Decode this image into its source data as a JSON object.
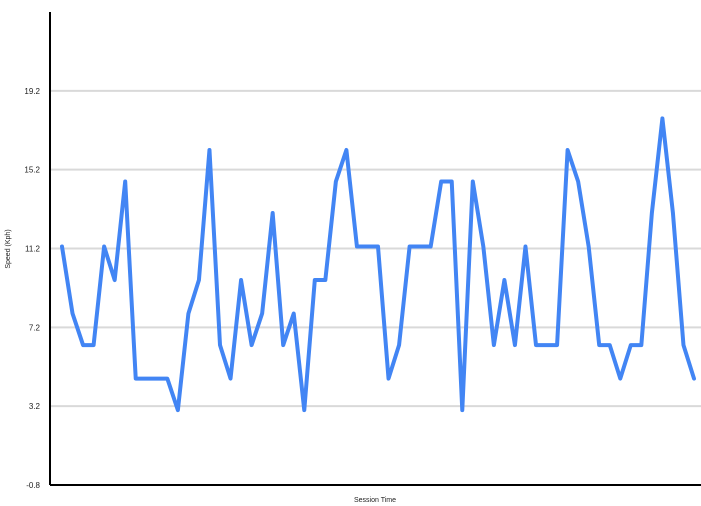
{
  "chart_data": {
    "type": "line",
    "title": "",
    "xlabel": "Session Time",
    "ylabel": "Speed (Kph)",
    "ylim": [
      -0.8,
      23.2
    ],
    "y_ticks": [
      "-0.8",
      "3.2",
      "7.2",
      "11.2",
      "15.2",
      "19.2"
    ],
    "grid": "horizontal",
    "legend": "none",
    "x_tick_labels": "none",
    "line_color": "#4285f4",
    "grid_color": "#d9d9d9",
    "axis_color": "#000000",
    "series": [
      {
        "values": [
          11.3,
          7.9,
          6.3,
          6.3,
          11.3,
          9.6,
          14.6,
          4.6,
          4.6,
          4.6,
          4.6,
          3.0,
          7.9,
          9.6,
          16.2,
          6.3,
          4.6,
          9.6,
          6.3,
          7.9,
          13.0,
          6.3,
          7.9,
          3.0,
          9.6,
          9.6,
          14.6,
          16.2,
          11.3,
          11.3,
          11.3,
          4.6,
          6.3,
          11.3,
          11.3,
          11.3,
          14.6,
          14.6,
          3.0,
          14.6,
          11.3,
          6.3,
          9.6,
          6.3,
          11.3,
          6.3,
          6.3,
          6.3,
          16.2,
          14.6,
          11.3,
          6.3,
          6.3,
          4.6,
          6.3,
          6.3,
          13.0,
          17.8,
          13.0,
          6.3,
          4.6
        ]
      }
    ]
  }
}
